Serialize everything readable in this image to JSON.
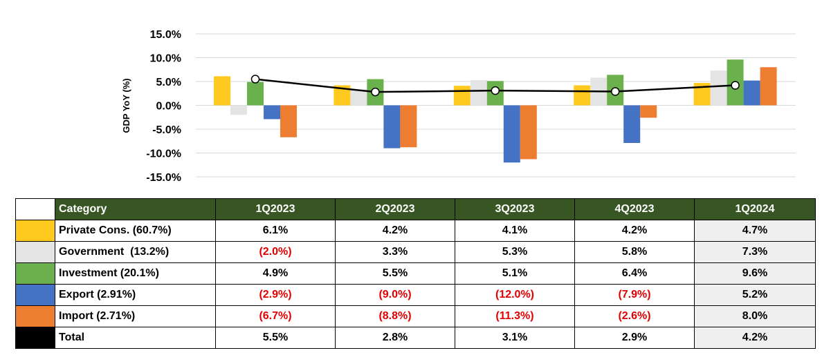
{
  "chart_data": {
    "type": "bar",
    "ylabel": "GDP YoY (%)",
    "ylim": [
      -15,
      15
    ],
    "yticks": [
      15,
      10,
      5,
      0,
      -5,
      -10,
      -15
    ],
    "ytick_labels": [
      "15.0%",
      "10.0%",
      "5.0%",
      "0.0%",
      "-5.0%",
      "-10.0%",
      "-15.0%"
    ],
    "grid": true,
    "categories": [
      "1Q2023",
      "2Q2023",
      "3Q2023",
      "4Q2023",
      "1Q2024"
    ],
    "series": [
      {
        "name": "Private Cons. (60.7%)",
        "type": "bar",
        "color": "#ffc91e",
        "values": [
          6.1,
          4.2,
          4.1,
          4.2,
          4.7
        ]
      },
      {
        "name": "Government  (13.2%)",
        "type": "bar",
        "color": "#e4e4e4",
        "values": [
          -2.0,
          3.3,
          5.3,
          5.8,
          7.3
        ]
      },
      {
        "name": "Investment (20.1%)",
        "type": "bar",
        "color": "#6ab04c",
        "values": [
          4.9,
          5.5,
          5.1,
          6.4,
          9.6
        ]
      },
      {
        "name": "Export (2.91%)",
        "type": "bar",
        "color": "#4472c4",
        "values": [
          -2.9,
          -9.0,
          -12.0,
          -7.9,
          5.2
        ]
      },
      {
        "name": "Import (2.71%)",
        "type": "bar",
        "color": "#ed7d31",
        "values": [
          -6.7,
          -8.8,
          -11.3,
          -2.6,
          8.0
        ]
      },
      {
        "name": "Total",
        "type": "line",
        "color": "#000000",
        "values": [
          5.5,
          2.8,
          3.1,
          2.9,
          4.2
        ]
      }
    ]
  },
  "table": {
    "header": [
      "Category",
      "1Q2023",
      "2Q2023",
      "3Q2023",
      "4Q2023",
      "1Q2024"
    ],
    "header_swatch_color": "#ffffff",
    "rows": [
      {
        "label": "Private Cons. (60.7%)",
        "color": "#ffc91e",
        "cells": [
          "6.1%",
          "4.2%",
          "4.1%",
          "4.2%",
          "4.7%"
        ]
      },
      {
        "label": "Government  (13.2%)",
        "color": "#e4e4e4",
        "cells": [
          "(2.0%)",
          "3.3%",
          "5.3%",
          "5.8%",
          "7.3%"
        ]
      },
      {
        "label": "Investment (20.1%)",
        "color": "#6ab04c",
        "cells": [
          "4.9%",
          "5.5%",
          "5.1%",
          "6.4%",
          "9.6%"
        ]
      },
      {
        "label": "Export (2.91%)",
        "color": "#4472c4",
        "cells": [
          "(2.9%)",
          "(9.0%)",
          "(12.0%)",
          "(7.9%)",
          "5.2%"
        ]
      },
      {
        "label": "Import (2.71%)",
        "color": "#ed7d31",
        "cells": [
          "(6.7%)",
          "(8.8%)",
          "(11.3%)",
          "(2.6%)",
          "8.0%"
        ]
      },
      {
        "label": "Total",
        "color": "#000000",
        "cells": [
          "5.5%",
          "2.8%",
          "3.1%",
          "2.9%",
          "4.2%"
        ]
      }
    ],
    "header_color": "#375623",
    "negative_color": "#e00000"
  }
}
